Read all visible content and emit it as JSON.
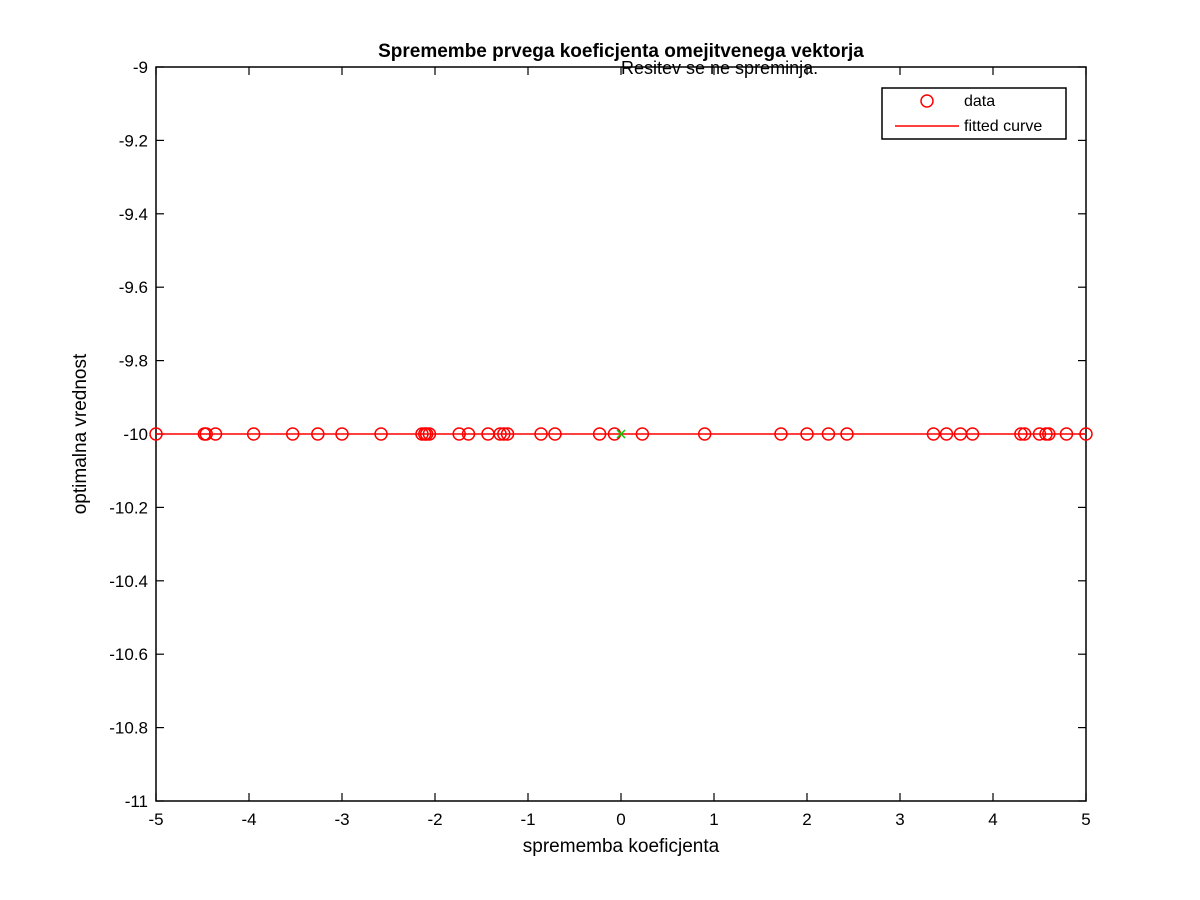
{
  "chart_data": {
    "type": "scatter",
    "title": "Spremembe prvega koeficjenta omejitvenega vektorja",
    "annotation": "Resitev se ne spreminja.",
    "xlabel": "sprememba koeficjenta",
    "ylabel": "optimalna vrednost",
    "xlim": [
      -5,
      5
    ],
    "ylim": [
      -11,
      -9
    ],
    "xticks": [
      -5,
      -4,
      -3,
      -2,
      -1,
      0,
      1,
      2,
      3,
      4,
      5
    ],
    "xtick_labels": [
      "-5",
      "-4",
      "-3",
      "-2",
      "-1",
      "0",
      "1",
      "2",
      "3",
      "4",
      "5"
    ],
    "yticks": [
      -9,
      -9.2,
      -9.4,
      -9.6,
      -9.8,
      -10,
      -10.2,
      -10.4,
      -10.6,
      -10.8,
      -11
    ],
    "ytick_labels": [
      "-9",
      "-9.2",
      "-9.4",
      "-9.6",
      "-9.8",
      "-10",
      "-10.2",
      "-10.4",
      "-10.6",
      "-10.8",
      "-11"
    ],
    "grid": false,
    "legend_position": "top-right",
    "series": [
      {
        "name": "data",
        "type": "scatter",
        "marker": "circle",
        "color": "#ff0000",
        "x": [
          -5.0,
          -4.48,
          -4.46,
          -4.36,
          -3.95,
          -3.53,
          -3.26,
          -3.0,
          -2.58,
          -2.14,
          -2.11,
          -2.09,
          -2.06,
          -1.74,
          -1.64,
          -1.43,
          -1.3,
          -1.26,
          -1.22,
          -0.86,
          -0.71,
          -0.23,
          -0.07,
          0.23,
          0.9,
          1.72,
          2.0,
          2.23,
          2.43,
          3.36,
          3.5,
          3.65,
          3.78,
          4.3,
          4.34,
          4.5,
          4.57,
          4.6,
          4.79,
          5.0
        ],
        "y": [
          -10,
          -10,
          -10,
          -10,
          -10,
          -10,
          -10,
          -10,
          -10,
          -10,
          -10,
          -10,
          -10,
          -10,
          -10,
          -10,
          -10,
          -10,
          -10,
          -10,
          -10,
          -10,
          -10,
          -10,
          -10,
          -10,
          -10,
          -10,
          -10,
          -10,
          -10,
          -10,
          -10,
          -10,
          -10,
          -10,
          -10,
          -10,
          -10,
          -10
        ]
      },
      {
        "name": "fitted curve",
        "type": "line",
        "color": "#ff0000",
        "x": [
          -5,
          5
        ],
        "y": [
          -10,
          -10
        ]
      },
      {
        "type": "scatter",
        "marker": "x",
        "color": "#00cc00",
        "x": [
          0
        ],
        "y": [
          -10
        ]
      }
    ]
  }
}
